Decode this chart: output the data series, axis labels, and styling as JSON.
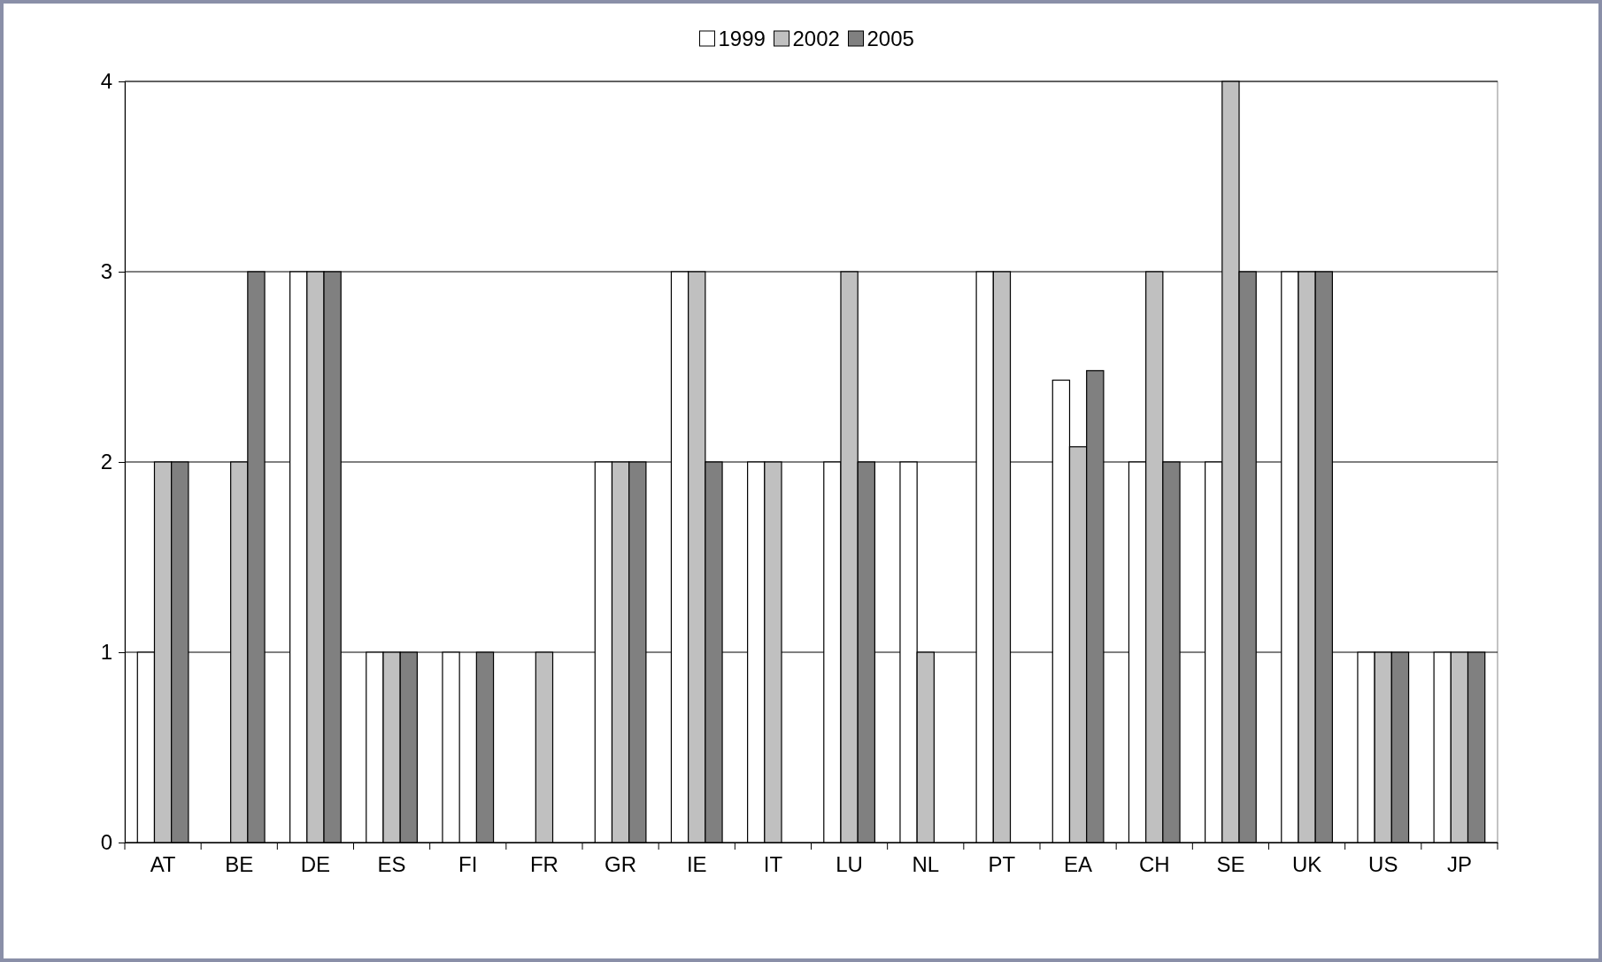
{
  "chart_data": {
    "type": "bar",
    "categories": [
      "AT",
      "BE",
      "DE",
      "ES",
      "FI",
      "FR",
      "GR",
      "IE",
      "IT",
      "LU",
      "NL",
      "PT",
      "EA",
      "CH",
      "SE",
      "UK",
      "US",
      "JP"
    ],
    "series": [
      {
        "name": "1999",
        "color": "#ffffff",
        "values": [
          1,
          null,
          3,
          1,
          1,
          null,
          2,
          3,
          2,
          2,
          2,
          3,
          2.43,
          2,
          2,
          3,
          1,
          1
        ]
      },
      {
        "name": "2002",
        "color": "#c0c0c0",
        "values": [
          2,
          2,
          3,
          1,
          null,
          1,
          2,
          3,
          2,
          3,
          1,
          3,
          2.08,
          3,
          4,
          3,
          1,
          1
        ]
      },
      {
        "name": "2005",
        "color": "#808080",
        "values": [
          2,
          3,
          3,
          1,
          1,
          null,
          2,
          2,
          null,
          2,
          null,
          null,
          2.48,
          2,
          3,
          3,
          1,
          1
        ]
      }
    ],
    "ylim": [
      0,
      4
    ],
    "yticks": [
      0,
      1,
      2,
      3,
      4
    ],
    "grid": "y",
    "legend": "top"
  }
}
